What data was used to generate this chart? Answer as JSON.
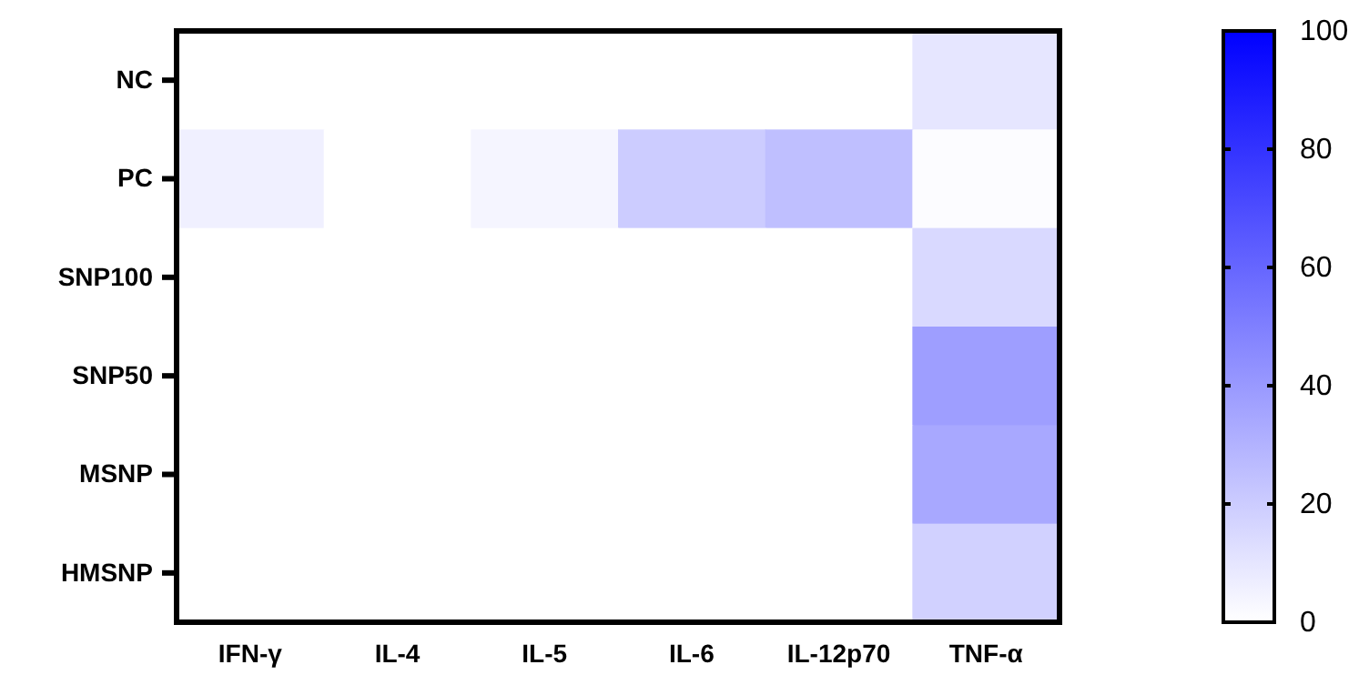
{
  "chart_data": {
    "type": "heatmap",
    "categories": [
      "IFN-γ",
      "IL-4",
      "IL-5",
      "IL-6",
      "IL-12p70",
      "TNF-α"
    ],
    "y_categories": [
      "NC",
      "PC",
      "SNP100",
      "SNP50",
      "MSNP",
      "HMSNP"
    ],
    "cells": [
      [
        0,
        0,
        0,
        0,
        0,
        10
      ],
      [
        6,
        0,
        4,
        20,
        25,
        1
      ],
      [
        0,
        0,
        0,
        0,
        0,
        15
      ],
      [
        0,
        0,
        0,
        0,
        0,
        38
      ],
      [
        0,
        0,
        0,
        0,
        0,
        34
      ],
      [
        0,
        0,
        0,
        0,
        0,
        18
      ]
    ],
    "clim": [
      0,
      100
    ],
    "cticks": [
      0,
      20,
      40,
      60,
      80,
      100
    ]
  }
}
